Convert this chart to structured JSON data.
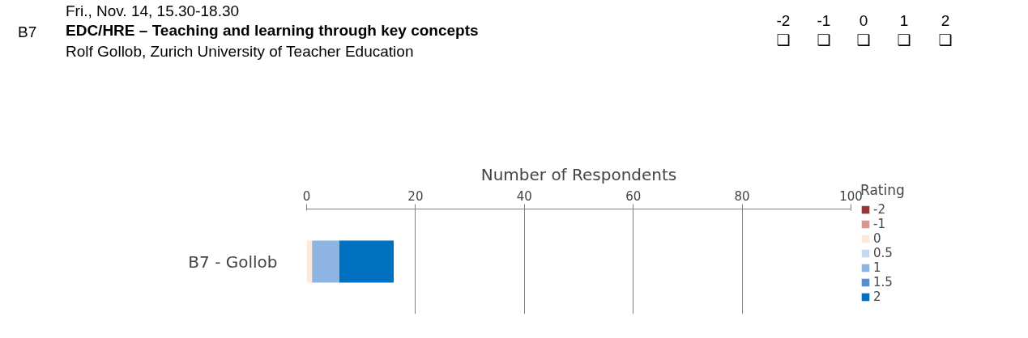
{
  "chart_data": {
    "type": "bar",
    "orientation": "horizontal",
    "stacked": true,
    "title": "EDC/HRE – Teaching and learning through key concepts",
    "subtitle": "Rolf Gollob, Zurich University of Teacher Education",
    "annotations": [
      "Fri., Nov. 14, 15.30-18.30",
      "B7",
      "-2",
      "-1",
      "0",
      "1",
      "2",
      "❑",
      "❑",
      "❑",
      "❑",
      "❑"
    ],
    "xlabel": "Number of Respondents",
    "legend_title": "Rating",
    "legend": "right",
    "grid": "x",
    "categories": [
      "B7 - Gollob"
    ],
    "xlim": [
      0,
      100
    ],
    "xticks": [
      0,
      20,
      40,
      60,
      80,
      100
    ],
    "series": [
      {
        "name": "-2",
        "color": "#953735",
        "values": [
          0
        ]
      },
      {
        "name": "-1",
        "color": "#d99694",
        "values": [
          0
        ]
      },
      {
        "name": "0",
        "color": "#fde9d9",
        "values": [
          1
        ]
      },
      {
        "name": "0.5",
        "color": "#c6d9f1",
        "values": [
          0
        ]
      },
      {
        "name": "1",
        "color": "#8eb4e3",
        "values": [
          5
        ]
      },
      {
        "name": "1.5",
        "color": "#558ed5",
        "values": [
          0
        ]
      },
      {
        "name": "2",
        "color": "#0070c0",
        "values": [
          10
        ]
      }
    ]
  }
}
